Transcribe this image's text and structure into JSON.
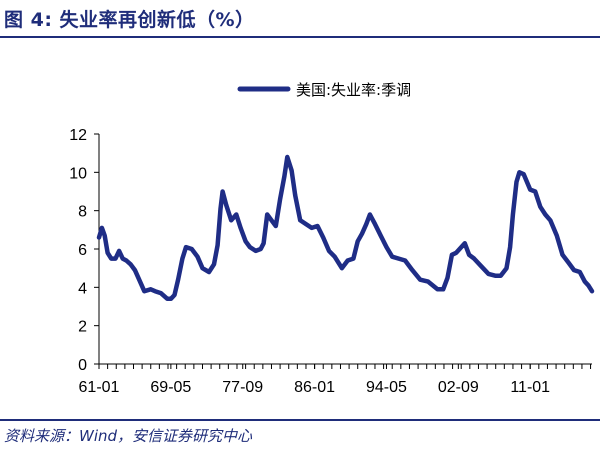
{
  "header": {
    "figure_title": "图 4:  失业率再创新低（%）"
  },
  "footer": {
    "source": "资料来源：Wind，安信证券研究中心"
  },
  "colors": {
    "series": "#1f2d86",
    "accent": "#1f2d7a"
  },
  "chart_data": {
    "type": "line",
    "title": "",
    "xlabel": "",
    "ylabel": "",
    "ylim": [
      0,
      12
    ],
    "yticks": [
      0,
      2,
      4,
      6,
      8,
      10,
      12
    ],
    "x_tick_labels": [
      "61-01",
      "69-05",
      "77-09",
      "86-01",
      "94-05",
      "02-09",
      "11-01"
    ],
    "x_range": [
      "1961-01",
      "2018-03"
    ],
    "legend": {
      "position": "top-right",
      "entries": [
        "美国:失业率:季调"
      ]
    },
    "grid": false,
    "series": [
      {
        "name": "美国:失业率:季调",
        "points": [
          [
            "1961-01",
            6.6
          ],
          [
            "1961-05",
            7.1
          ],
          [
            "1961-09",
            6.7
          ],
          [
            "1962-01",
            5.8
          ],
          [
            "1962-06",
            5.5
          ],
          [
            "1962-12",
            5.5
          ],
          [
            "1963-05",
            5.9
          ],
          [
            "1963-10",
            5.5
          ],
          [
            "1964-03",
            5.4
          ],
          [
            "1964-09",
            5.2
          ],
          [
            "1965-03",
            4.9
          ],
          [
            "1965-09",
            4.4
          ],
          [
            "1966-04",
            3.8
          ],
          [
            "1967-01",
            3.9
          ],
          [
            "1967-07",
            3.8
          ],
          [
            "1968-03",
            3.7
          ],
          [
            "1968-12",
            3.4
          ],
          [
            "1969-05",
            3.4
          ],
          [
            "1969-10",
            3.6
          ],
          [
            "1970-03",
            4.4
          ],
          [
            "1970-09",
            5.5
          ],
          [
            "1971-02",
            6.1
          ],
          [
            "1971-10",
            6.0
          ],
          [
            "1972-06",
            5.6
          ],
          [
            "1973-01",
            5.0
          ],
          [
            "1973-10",
            4.8
          ],
          [
            "1974-05",
            5.2
          ],
          [
            "1974-10",
            6.2
          ],
          [
            "1975-02",
            8.1
          ],
          [
            "1975-05",
            9.0
          ],
          [
            "1975-10",
            8.3
          ],
          [
            "1976-05",
            7.5
          ],
          [
            "1976-12",
            7.8
          ],
          [
            "1977-06",
            7.1
          ],
          [
            "1978-01",
            6.4
          ],
          [
            "1978-07",
            6.1
          ],
          [
            "1979-03",
            5.9
          ],
          [
            "1979-10",
            6.0
          ],
          [
            "1980-02",
            6.3
          ],
          [
            "1980-07",
            7.8
          ],
          [
            "1981-01",
            7.5
          ],
          [
            "1981-07",
            7.2
          ],
          [
            "1982-01",
            8.6
          ],
          [
            "1982-07",
            9.8
          ],
          [
            "1982-11",
            10.8
          ],
          [
            "1983-05",
            10.1
          ],
          [
            "1983-10",
            8.8
          ],
          [
            "1984-05",
            7.5
          ],
          [
            "1985-01",
            7.3
          ],
          [
            "1985-09",
            7.1
          ],
          [
            "1986-05",
            7.2
          ],
          [
            "1987-01",
            6.6
          ],
          [
            "1987-09",
            5.9
          ],
          [
            "1988-05",
            5.6
          ],
          [
            "1989-03",
            5.0
          ],
          [
            "1989-11",
            5.4
          ],
          [
            "1990-07",
            5.5
          ],
          [
            "1991-01",
            6.4
          ],
          [
            "1991-07",
            6.8
          ],
          [
            "1992-01",
            7.3
          ],
          [
            "1992-06",
            7.8
          ],
          [
            "1993-01",
            7.3
          ],
          [
            "1993-09",
            6.7
          ],
          [
            "1994-05",
            6.1
          ],
          [
            "1995-01",
            5.6
          ],
          [
            "1995-10",
            5.5
          ],
          [
            "1996-07",
            5.4
          ],
          [
            "1997-05",
            4.9
          ],
          [
            "1998-04",
            4.4
          ],
          [
            "1999-03",
            4.3
          ],
          [
            "2000-04",
            3.9
          ],
          [
            "2000-12",
            3.9
          ],
          [
            "2001-06",
            4.5
          ],
          [
            "2001-12",
            5.7
          ],
          [
            "2002-06",
            5.8
          ],
          [
            "2003-06",
            6.3
          ],
          [
            "2003-12",
            5.7
          ],
          [
            "2004-07",
            5.5
          ],
          [
            "2005-05",
            5.1
          ],
          [
            "2006-03",
            4.7
          ],
          [
            "2007-01",
            4.6
          ],
          [
            "2007-08",
            4.6
          ],
          [
            "2008-04",
            5.0
          ],
          [
            "2008-09",
            6.1
          ],
          [
            "2009-01",
            7.8
          ],
          [
            "2009-06",
            9.5
          ],
          [
            "2009-10",
            10.0
          ],
          [
            "2010-04",
            9.9
          ],
          [
            "2011-01",
            9.1
          ],
          [
            "2011-08",
            9.0
          ],
          [
            "2012-03",
            8.2
          ],
          [
            "2012-10",
            7.8
          ],
          [
            "2013-05",
            7.5
          ],
          [
            "2014-02",
            6.7
          ],
          [
            "2014-10",
            5.7
          ],
          [
            "2015-06",
            5.3
          ],
          [
            "2016-02",
            4.9
          ],
          [
            "2016-10",
            4.8
          ],
          [
            "2017-05",
            4.3
          ],
          [
            "2017-10",
            4.1
          ],
          [
            "2018-03",
            3.8
          ]
        ]
      }
    ]
  }
}
